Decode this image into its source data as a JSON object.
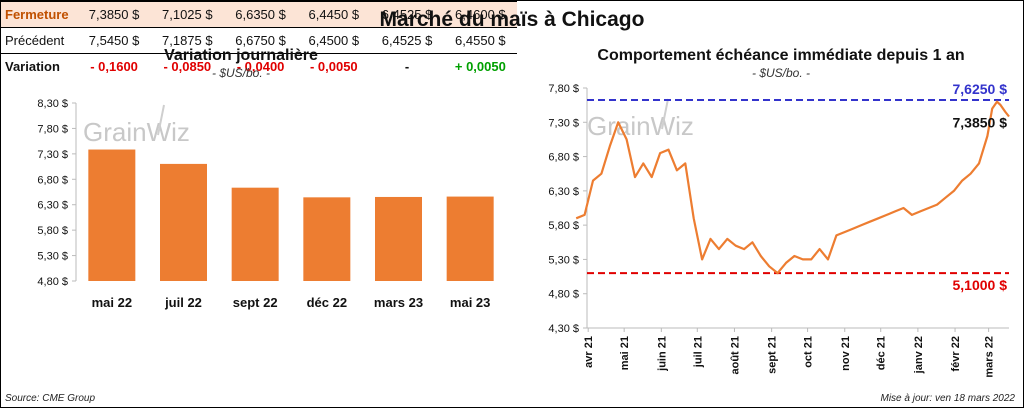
{
  "title": "Marché du maïs à Chicago",
  "left": {
    "title": "Variation  journalière",
    "unit": "- $US/bo. -",
    "watermark": "GrainWiz"
  },
  "right": {
    "title": "Comportement  échéance immédiate depuis 1 an",
    "unit": "- $US/bo. -",
    "watermark": "GrainWiz"
  },
  "table": {
    "rows": [
      {
        "label": "Fermeture",
        "values": [
          "7,3850  $",
          "7,1025  $",
          "6,6350  $",
          "6,4450  $",
          "6,4525  $",
          "6,4600  $"
        ]
      },
      {
        "label": "Précédent",
        "values": [
          "7,5450  $",
          "7,1875  $",
          "6,6750  $",
          "6,4500  $",
          "6,4525  $",
          "6,4550  $"
        ]
      },
      {
        "label": "Variation",
        "values": [
          "- 0,1600",
          "- 0,0850",
          "- 0,0400",
          "- 0,0050",
          "-",
          "+ 0,0050"
        ]
      }
    ]
  },
  "source": "Source: CME Group",
  "updated": "Mise à jour: ven 18 mars 2022",
  "colors": {
    "bar": "#ed7d31",
    "line": "#ed7d31",
    "high": "#3333cc",
    "low": "#e00000",
    "close_row": "#fce4d6"
  },
  "chart_data": [
    {
      "type": "bar",
      "title": "Variation  journalière",
      "ylabel": "- $US/bo. -",
      "categories": [
        "mai 22",
        "juil 22",
        "sept 22",
        "déc 22",
        "mars 23",
        "mai 23"
      ],
      "values": [
        7.385,
        7.1025,
        6.635,
        6.445,
        6.4525,
        6.46
      ],
      "ylim": [
        4.8,
        8.3
      ],
      "yticks": [
        4.8,
        5.3,
        5.8,
        6.3,
        6.8,
        7.3,
        7.8,
        8.3
      ],
      "ytick_labels": [
        "4,80 $",
        "5,30 $",
        "5,80 $",
        "6,30 $",
        "6,80 $",
        "7,30 $",
        "7,80 $",
        "8,30 $"
      ],
      "grid": false
    },
    {
      "type": "line",
      "title": "Comportement  échéance immédiate depuis 1 an",
      "ylabel": "- $US/bo. -",
      "ylim": [
        4.3,
        7.8
      ],
      "yticks": [
        4.3,
        4.8,
        5.3,
        5.8,
        6.3,
        6.8,
        7.3,
        7.8
      ],
      "ytick_labels": [
        "4,30 $",
        "4,80 $",
        "5,30 $",
        "5,80 $",
        "6,30 $",
        "6,80 $",
        "7,30 $",
        "7,80 $"
      ],
      "xtick_labels": [
        "avr 21",
        "mai 21",
        "juin 21",
        "juil 21",
        "août 21",
        "sept 21",
        "oct 21",
        "nov 21",
        "déc 21",
        "janv 22",
        "févr 22",
        "mars 22"
      ],
      "x": [
        "2021-03-22",
        "2021-03-29",
        "2021-04-05",
        "2021-04-12",
        "2021-04-19",
        "2021-04-26",
        "2021-05-03",
        "2021-05-10",
        "2021-05-17",
        "2021-05-24",
        "2021-05-31",
        "2021-06-07",
        "2021-06-14",
        "2021-06-21",
        "2021-06-28",
        "2021-07-05",
        "2021-07-12",
        "2021-07-19",
        "2021-07-26",
        "2021-08-02",
        "2021-08-09",
        "2021-08-16",
        "2021-08-23",
        "2021-08-30",
        "2021-09-06",
        "2021-09-13",
        "2021-09-20",
        "2021-09-27",
        "2021-10-04",
        "2021-10-11",
        "2021-10-18",
        "2021-10-25",
        "2021-11-01",
        "2021-11-08",
        "2021-11-15",
        "2021-11-22",
        "2021-11-29",
        "2021-12-06",
        "2021-12-13",
        "2021-12-20",
        "2021-12-27",
        "2022-01-03",
        "2022-01-10",
        "2022-01-17",
        "2022-01-24",
        "2022-01-31",
        "2022-02-07",
        "2022-02-14",
        "2022-02-21",
        "2022-02-28",
        "2022-03-04",
        "2022-03-08",
        "2022-03-11",
        "2022-03-15",
        "2022-03-18"
      ],
      "series": [
        {
          "values": [
            5.9,
            5.95,
            6.45,
            6.55,
            6.95,
            7.3,
            7.05,
            6.5,
            6.7,
            6.5,
            6.85,
            6.9,
            6.6,
            6.7,
            5.9,
            5.3,
            5.6,
            5.45,
            5.6,
            5.5,
            5.45,
            5.55,
            5.35,
            5.2,
            5.1,
            5.25,
            5.35,
            5.3,
            5.3,
            5.45,
            5.3,
            5.65,
            5.7,
            5.75,
            5.8,
            5.85,
            5.9,
            5.95,
            6.0,
            6.05,
            5.95,
            6.0,
            6.05,
            6.1,
            6.2,
            6.3,
            6.45,
            6.55,
            6.7,
            7.1,
            7.5,
            7.6,
            7.55,
            7.45,
            7.385
          ]
        }
      ],
      "annotations": [
        {
          "type": "hline",
          "value": 7.625,
          "label": "7,6250 $",
          "color": "#3333cc"
        },
        {
          "type": "hline",
          "value": 5.1,
          "label": "5,1000 $",
          "color": "#e00000"
        },
        {
          "type": "point-label",
          "value": 7.385,
          "label": "7,3850 $"
        }
      ],
      "grid": false
    }
  ]
}
